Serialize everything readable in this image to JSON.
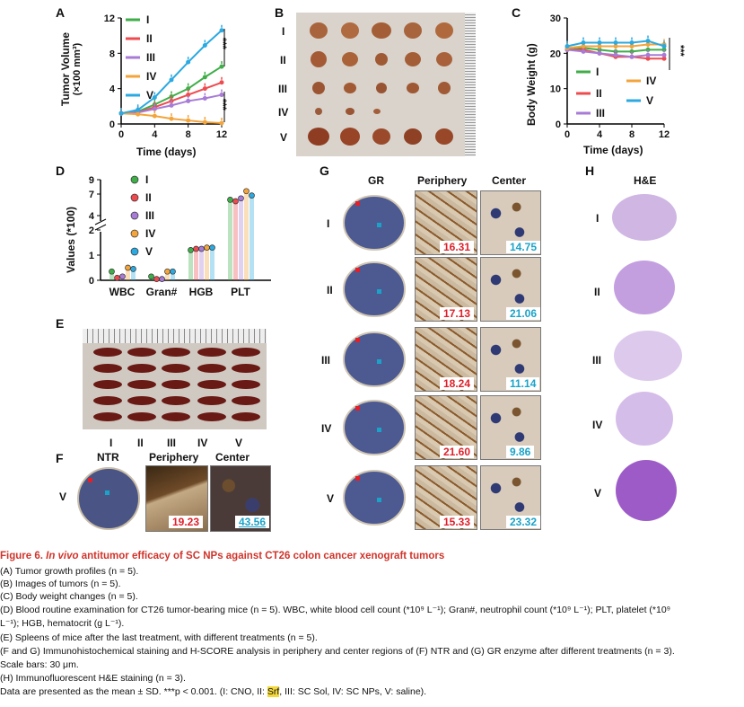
{
  "panels": {
    "A": {
      "label": "A",
      "ylabel_line1": "Tumor Volume",
      "ylabel_line2": "(×100 mm³)",
      "xlabel": "Time (days)",
      "sig1": "***",
      "sig2": "***"
    },
    "B": {
      "label": "B",
      "rows": [
        "I",
        "II",
        "III",
        "IV",
        "V"
      ]
    },
    "C": {
      "label": "C",
      "ylabel": "Body Weight (g)",
      "xlabel": "Time (days)",
      "sig": "***"
    },
    "D": {
      "label": "D",
      "ylabel": "Values (*100)"
    },
    "E": {
      "label": "E",
      "groups": [
        "I",
        "II",
        "III",
        "IV",
        "V"
      ]
    },
    "F": {
      "label": "F",
      "headers": [
        "NTR",
        "Periphery",
        "Center"
      ],
      "row": "V",
      "score_periphery": "19.23",
      "score_center": "43.56"
    },
    "G": {
      "label": "G",
      "headers": [
        "GR",
        "Periphery",
        "Center"
      ],
      "rows": [
        {
          "label": "I",
          "periphery": "16.31",
          "center": "14.75"
        },
        {
          "label": "II",
          "periphery": "17.13",
          "center": "21.06"
        },
        {
          "label": "III",
          "periphery": "18.24",
          "center": "11.14"
        },
        {
          "label": "IV",
          "periphery": "21.60",
          "center": "9.86"
        },
        {
          "label": "V",
          "periphery": "15.33",
          "center": "23.32"
        }
      ]
    },
    "H": {
      "label": "H",
      "header": "H&E",
      "rows": [
        "I",
        "II",
        "III",
        "IV",
        "V"
      ]
    }
  },
  "colors": {
    "I": "#3fae49",
    "II": "#ee4b4f",
    "III": "#a77bd6",
    "IV": "#f3a43b",
    "V": "#2ba9e1"
  },
  "chart_data": [
    {
      "id": "A",
      "type": "line",
      "title": "",
      "xlabel": "Time (days)",
      "ylabel": "Tumor Volume (×100 mm³)",
      "x": [
        0,
        2,
        4,
        6,
        8,
        10,
        12
      ],
      "xticks": [
        "0",
        "4",
        "8",
        "12"
      ],
      "yticks": [
        "0",
        "4",
        "8",
        "12"
      ],
      "xlim": [
        0,
        12
      ],
      "ylim": [
        0,
        12
      ],
      "series": [
        {
          "name": "I",
          "values": [
            1.2,
            1.4,
            2.2,
            3.1,
            4.0,
            5.3,
            6.5
          ]
        },
        {
          "name": "II",
          "values": [
            1.2,
            1.3,
            1.9,
            2.6,
            3.3,
            4.0,
            4.7
          ]
        },
        {
          "name": "III",
          "values": [
            1.2,
            1.3,
            1.7,
            2.1,
            2.6,
            2.9,
            3.3
          ]
        },
        {
          "name": "IV",
          "values": [
            1.2,
            1.1,
            0.9,
            0.6,
            0.4,
            0.2,
            0.1
          ]
        },
        {
          "name": "V",
          "values": [
            1.2,
            1.6,
            3.0,
            5.0,
            7.0,
            8.9,
            10.6
          ]
        }
      ]
    },
    {
      "id": "C",
      "type": "line",
      "title": "",
      "xlabel": "Time (days)",
      "ylabel": "Body Weight (g)",
      "x": [
        0,
        2,
        4,
        6,
        8,
        10,
        12
      ],
      "xticks": [
        "0",
        "4",
        "8",
        "12"
      ],
      "yticks": [
        "0",
        "10",
        "20",
        "30"
      ],
      "xlim": [
        0,
        12
      ],
      "ylim": [
        0,
        30
      ],
      "series": [
        {
          "name": "I",
          "values": [
            21,
            21.5,
            21,
            20.5,
            20.5,
            21,
            21
          ]
        },
        {
          "name": "II",
          "values": [
            21,
            21,
            20,
            19,
            19,
            18.5,
            18.5
          ]
        },
        {
          "name": "III",
          "values": [
            21,
            20.5,
            20,
            19.5,
            19,
            19.5,
            19.5
          ]
        },
        {
          "name": "IV",
          "values": [
            21.5,
            22,
            22,
            22,
            22,
            22.5,
            22.5
          ]
        },
        {
          "name": "V",
          "values": [
            22,
            23,
            23,
            23,
            23,
            23.5,
            22
          ]
        }
      ]
    },
    {
      "id": "D",
      "type": "bar",
      "title": "",
      "xlabel": "",
      "ylabel": "Values (*100)",
      "categories": [
        "WBC",
        "Gran#",
        "HGB",
        "PLT"
      ],
      "yticks_lower": [
        "0",
        "1",
        "2"
      ],
      "yticks_upper": [
        "4",
        "7",
        "9"
      ],
      "series": [
        {
          "name": "I",
          "values": [
            0.35,
            0.15,
            1.2,
            6.2
          ]
        },
        {
          "name": "II",
          "values": [
            0.1,
            0.05,
            1.25,
            6.0
          ]
        },
        {
          "name": "III",
          "values": [
            0.15,
            0.05,
            1.25,
            6.4
          ]
        },
        {
          "name": "IV",
          "values": [
            0.5,
            0.35,
            1.3,
            7.4
          ]
        },
        {
          "name": "V",
          "values": [
            0.45,
            0.35,
            1.3,
            6.8
          ]
        }
      ]
    }
  ],
  "caption": {
    "title_prefix": "Figure 6. ",
    "title_italic": "In vivo",
    "title_rest": " antitumor efficacy of SC NPs against CT26 colon cancer xenograft tumors",
    "line_a": "(A) Tumor growth profiles (n = 5).",
    "line_b": "(B) Images of tumors (n = 5).",
    "line_c": "(C) Body weight changes (n = 5).",
    "line_d1": "(D) Blood routine examination for CT26 tumor-bearing mice (n = 5). WBC, white blood cell count (*10⁹ L⁻¹); Gran#, neutrophil count (*10⁹ L⁻¹); PLT, platelet (*10⁹",
    "line_d2": "L⁻¹); HGB, hematocrit (g L⁻¹).",
    "line_e": "(E) Spleens of mice after the last treatment, with different treatments (n = 5).",
    "line_fg": "(F and G) Immunohistochemical staining and H-SCORE analysis in periphery and center regions of (F) NTR and (G) GR enzyme after different treatments (n = 3).",
    "line_scale": "Scale bars: 30 μm.",
    "line_h": "(H) Immunofluorescent H&E staining (n = 3).",
    "line_last_pre": "Data are presented as the mean ± SD. ***p < 0.001. (I: CNO, II: ",
    "line_last_hl": "Srf",
    "line_last_post": ", III: SC Sol, IV: SC NPs, V: saline)."
  }
}
